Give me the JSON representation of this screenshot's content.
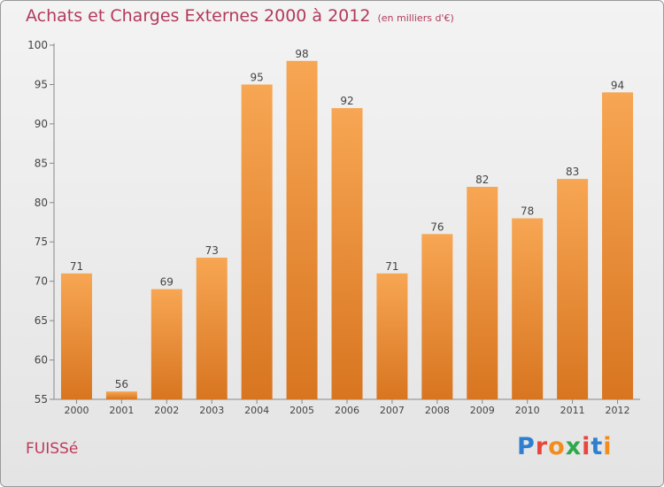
{
  "title": "Achats et Charges Externes 2000 à 2012",
  "unit": "(en milliers d'€)",
  "commune": "FUISSé",
  "logo": {
    "text": "Proxiti",
    "letters": [
      {
        "ch": "P",
        "color": "#2e7fd0"
      },
      {
        "ch": "r",
        "color": "#e8453c"
      },
      {
        "ch": "o",
        "color": "#f28c1c"
      },
      {
        "ch": "x",
        "color": "#2ea84a"
      },
      {
        "ch": "i",
        "color": "#e8453c"
      },
      {
        "ch": "t",
        "color": "#2e7fd0"
      },
      {
        "ch": "i",
        "color": "#f28c1c"
      }
    ]
  },
  "colors": {
    "bar_light": "#f7a653",
    "bar_dark": "#d87520",
    "title": "#b23a5a"
  },
  "chart_data": {
    "type": "bar",
    "title": "Achats et Charges Externes 2000 à 2012",
    "unit": "(en milliers d'€)",
    "categories": [
      "2000",
      "2001",
      "2002",
      "2003",
      "2004",
      "2005",
      "2006",
      "2007",
      "2008",
      "2009",
      "2010",
      "2011",
      "2012"
    ],
    "values": [
      71,
      56,
      69,
      73,
      95,
      98,
      92,
      71,
      76,
      82,
      78,
      83,
      94
    ],
    "ylim": [
      55,
      100
    ],
    "yticks": [
      55,
      60,
      65,
      70,
      75,
      80,
      85,
      90,
      95,
      100
    ],
    "grid": false,
    "legend": "none"
  }
}
